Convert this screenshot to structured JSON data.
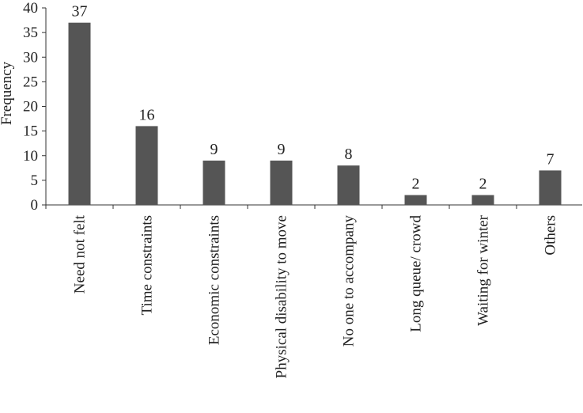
{
  "chart_data": {
    "type": "bar",
    "categories": [
      "Need not felt",
      "Time constraints",
      "Economic constraints",
      "Physical disability to move",
      "No one to accompany",
      "Long queue/ crowd",
      "Waiting for winter",
      "Others"
    ],
    "values": [
      37,
      16,
      9,
      9,
      8,
      2,
      2,
      7
    ],
    "data_labels": [
      "37",
      "16",
      "9",
      "9",
      "8",
      "2",
      "2",
      "7"
    ],
    "ylabel": "Frequency",
    "xlabel": "",
    "ylim": [
      0,
      40
    ],
    "yticks": [
      0,
      5,
      10,
      15,
      20,
      25,
      30,
      35,
      40
    ],
    "ytick_labels": [
      "0",
      "5",
      "10",
      "15",
      "20",
      "25",
      "30",
      "35",
      "40"
    ],
    "grid": false,
    "legend": "none",
    "bar_color": "#555555",
    "axis_color": "#333333"
  }
}
